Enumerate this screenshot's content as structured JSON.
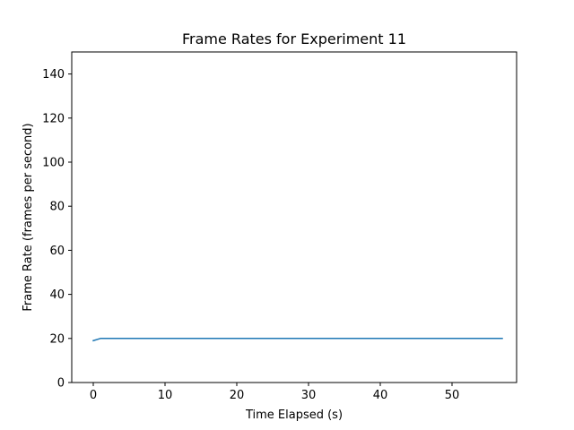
{
  "chart_data": {
    "type": "line",
    "title": "Frame Rates for Experiment 11",
    "xlabel": "Time Elapsed (s)",
    "ylabel": "Frame Rate (frames per second)",
    "xlim": [
      -3,
      59
    ],
    "ylim": [
      0,
      150
    ],
    "xticks": [
      0,
      10,
      20,
      30,
      40,
      50
    ],
    "yticks": [
      0,
      20,
      40,
      60,
      80,
      100,
      120,
      140
    ],
    "grid": false,
    "series": [
      {
        "color": "#1f77b4",
        "x": [
          0,
          1,
          2,
          3,
          4,
          5,
          6,
          7,
          8,
          9,
          10,
          11,
          12,
          13,
          14,
          15,
          16,
          17,
          18,
          19,
          20,
          21,
          22,
          23,
          24,
          25,
          26,
          27,
          28,
          29,
          30,
          31,
          32,
          33,
          34,
          35,
          36,
          37,
          38,
          39,
          40,
          41,
          42,
          43,
          44,
          45,
          46,
          47,
          48,
          49,
          50,
          51,
          52,
          53,
          54,
          55,
          56,
          57
        ],
        "y": [
          19,
          20,
          20,
          20,
          20,
          20,
          20,
          20,
          20,
          20,
          20,
          20,
          20,
          20,
          20,
          20,
          20,
          20,
          20,
          20,
          20,
          20,
          20,
          20,
          20,
          20,
          20,
          20,
          20,
          20,
          20,
          20,
          20,
          20,
          20,
          20,
          20,
          20,
          20,
          20,
          20,
          20,
          20,
          20,
          20,
          20,
          20,
          20,
          20,
          20,
          20,
          20,
          20,
          20,
          20,
          20,
          20,
          20
        ]
      }
    ]
  }
}
